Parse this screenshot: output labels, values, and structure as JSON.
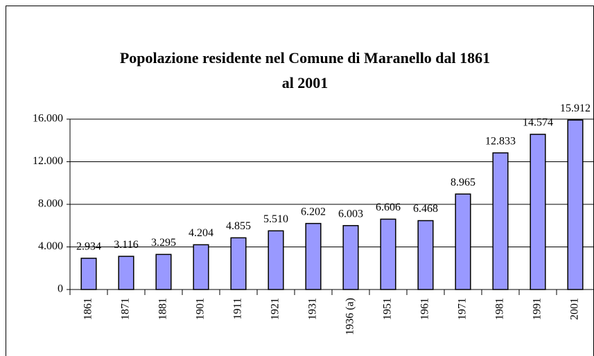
{
  "chart_data": {
    "type": "bar",
    "title": "Popolazione residente nel Comune di Maranello dal 1861 al 2001",
    "categories": [
      "1861",
      "1871",
      "1881",
      "1901",
      "1911",
      "1921",
      "1931",
      "1936 (a)",
      "1951",
      "1961",
      "1971",
      "1981",
      "1991",
      "2001"
    ],
    "values": [
      2934,
      3116,
      3295,
      4204,
      4855,
      5510,
      6202,
      6003,
      6606,
      6468,
      8965,
      12833,
      14574,
      15912
    ],
    "value_labels": [
      "2.934",
      "3.116",
      "3.295",
      "4.204",
      "4.855",
      "5.510",
      "6.202",
      "6.003",
      "6.606",
      "6.468",
      "8.965",
      "12.833",
      "14.574",
      "15.912"
    ],
    "color": "#9999ff",
    "ylim": [
      0,
      16000
    ],
    "yticks": [
      0,
      {
        "value": 4000,
        "label": "4.000"
      },
      {
        "value": 8000,
        "label": "8.000"
      },
      {
        "value": 12000,
        "label": "12.000"
      },
      {
        "value": 16000,
        "label": "16.000"
      }
    ],
    "grid": true
  }
}
